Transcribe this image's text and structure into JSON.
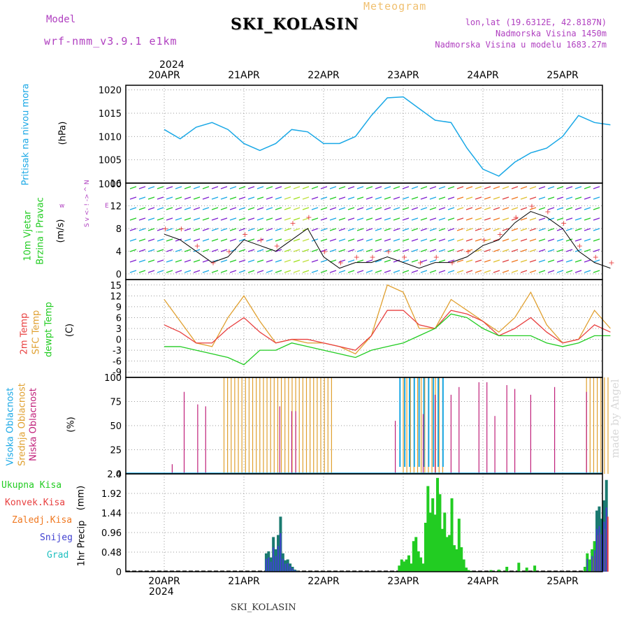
{
  "header": {
    "model_label": "Model",
    "model_value": "wrf-nmm_v3.9.1 e1km",
    "station": "SKI_KOLASIN",
    "meteogram_label": "Meteogram",
    "lonlat": "lon,lat (19.6312E, 42.8187N)",
    "altitude": "Nadmorska Visina 1450m",
    "model_altitude": "Nadmorska Visina u modelu 1683.27m",
    "year": "2024",
    "watermark": "made by Angel",
    "footer_station": "SKI_KOLASIN"
  },
  "colors": {
    "pressure": "#1aa8e6",
    "temp2m": "#e84040",
    "sfc": "#e0a030",
    "dewpt": "#22cc22",
    "high_cloud": "#1aa8e6",
    "mid_cloud": "#e0a030",
    "low_cloud": "#c0207a",
    "rain_total": "#22cc22",
    "rain_conv": "#e84040",
    "freezing": "#f07820",
    "snow": "#4040d0",
    "hail": "#20c0c0",
    "model_label": "#b040c0"
  },
  "chart_data": [
    {
      "id": "pressure",
      "type": "line",
      "ylabel_left": "Pritisak na nivou mora",
      "unit": "(hPa)",
      "yticks": [
        1005,
        1010,
        1015,
        1020
      ],
      "ytick_partial": "1000",
      "ylim": [
        1000,
        1021
      ],
      "x_days": [
        "20APR",
        "21APR",
        "22APR",
        "23APR",
        "24APR",
        "25APR"
      ],
      "x": [
        0,
        0.2,
        0.4,
        0.6,
        0.8,
        1.0,
        1.2,
        1.4,
        1.6,
        1.8,
        2.0,
        2.2,
        2.4,
        2.6,
        2.8,
        3.0,
        3.2,
        3.4,
        3.6,
        3.8,
        4.0,
        4.2,
        4.4,
        4.6,
        4.8,
        5.0,
        5.2,
        5.4,
        5.6
      ],
      "values": [
        1011.5,
        1009.5,
        1012,
        1013,
        1011.5,
        1008.5,
        1007,
        1008.5,
        1011.5,
        1011,
        1008.5,
        1008.5,
        1010,
        1014.5,
        1018.3,
        1018.5,
        1016,
        1013.5,
        1013,
        1007.5,
        1003,
        1001.5,
        1004.5,
        1006.5,
        1007.5,
        1010,
        1014.5,
        1013,
        1012.5
      ]
    },
    {
      "id": "wind",
      "type": "line",
      "ylabel_left": "10m Vjetar",
      "ylabel_left2": "Brzina i Pravac",
      "unit": "(m/s)",
      "direction_legend": [
        "w",
        "<- ! ->",
        "E",
        "N",
        "^",
        "v",
        "S"
      ],
      "yticks": [
        0,
        4,
        8,
        12,
        16
      ],
      "ylim": [
        -1,
        16
      ],
      "x": [
        0,
        0.2,
        0.4,
        0.6,
        0.8,
        1.0,
        1.2,
        1.4,
        1.6,
        1.8,
        2.0,
        2.2,
        2.4,
        2.6,
        2.8,
        3.0,
        3.2,
        3.4,
        3.6,
        3.8,
        4.0,
        4.2,
        4.4,
        4.6,
        4.8,
        5.0,
        5.2,
        5.4,
        5.6
      ],
      "values": [
        7,
        6,
        4,
        2,
        3,
        6,
        5,
        4,
        6,
        8,
        3,
        1,
        2,
        2,
        3,
        2,
        1,
        2,
        2,
        3,
        5,
        6,
        9,
        11,
        10,
        8,
        4,
        2,
        1
      ],
      "gusts": [
        8,
        8,
        5,
        2,
        4,
        7,
        6,
        5,
        9,
        10,
        4,
        2,
        3,
        3,
        4,
        3,
        2,
        3,
        2,
        4,
        6,
        7,
        10,
        12,
        11,
        9,
        5,
        3,
        2
      ]
    },
    {
      "id": "temperature",
      "type": "line",
      "ylabel_left": "2m Temp",
      "ylabel_left2": "SFC Temp",
      "ylabel_left3": "dewpt Temp",
      "unit": "(C)",
      "yticks": [
        -9,
        -6,
        -3,
        0,
        3,
        6,
        9,
        12,
        15
      ],
      "ylim": [
        -10.5,
        16.5
      ],
      "x": [
        0,
        0.2,
        0.4,
        0.6,
        0.8,
        1.0,
        1.2,
        1.4,
        1.6,
        1.8,
        2.0,
        2.2,
        2.4,
        2.6,
        2.8,
        3.0,
        3.2,
        3.4,
        3.6,
        3.8,
        4.0,
        4.2,
        4.4,
        4.6,
        4.8,
        5.0,
        5.2,
        5.4,
        5.6
      ],
      "series": [
        {
          "name": "SFC Temp",
          "values": [
            11,
            5,
            -1,
            -2,
            6,
            12,
            5,
            -1,
            0,
            -1,
            -1,
            -2,
            -4,
            1,
            15,
            13,
            3,
            3,
            11,
            8,
            5,
            2,
            6,
            13,
            4,
            -1,
            0,
            8,
            3
          ]
        },
        {
          "name": "2m Temp",
          "values": [
            4,
            2,
            -1,
            -1,
            3,
            6,
            2,
            -1,
            0,
            0,
            -1,
            -2,
            -3,
            1,
            8,
            8,
            4,
            3,
            8,
            7,
            5,
            1,
            3,
            6,
            2,
            -1,
            0,
            4,
            2
          ]
        },
        {
          "name": "dewpt Temp",
          "values": [
            -2,
            -2,
            -3,
            -4,
            -5,
            -7,
            -3,
            -3,
            -1,
            -2,
            -3,
            -4,
            -5,
            -3,
            -2,
            -1,
            1,
            3,
            7,
            6,
            3,
            1,
            1,
            1,
            -1,
            -2,
            -1,
            1,
            1
          ]
        }
      ]
    },
    {
      "id": "clouds",
      "type": "bar",
      "ylabel_left": "Visoka Oblacnost",
      "ylabel_left2": "Srednja Oblacnost",
      "ylabel_left3": "Niska Oblacnost",
      "unit": "(%)",
      "yticks": [
        0,
        25,
        50,
        75,
        100
      ],
      "ylim": [
        0,
        100
      ],
      "low_x": [
        0.1,
        0.25,
        0.42,
        0.52,
        1.45,
        1.6,
        1.65,
        2.9,
        3.25,
        3.4,
        3.6,
        3.7,
        3.95,
        4.05,
        4.15,
        4.3,
        4.4,
        4.6,
        4.9,
        5.3
      ],
      "low_values": [
        10,
        85,
        72,
        70,
        70,
        65,
        65,
        55,
        62,
        82,
        82,
        90,
        95,
        95,
        60,
        92,
        88,
        82,
        90,
        85
      ],
      "mid_ranges": [
        [
          0.75,
          2.1
        ],
        [
          3.0,
          3.5
        ],
        [
          5.3,
          5.6
        ]
      ],
      "mid_value": 100,
      "high_ranges": [
        [
          2.95,
          3.55
        ]
      ],
      "high_value": 100
    },
    {
      "id": "precip",
      "type": "bar",
      "ylabel_left": "1hr Precip",
      "unit": "(mm)",
      "legend": [
        "Ukupna Kisa",
        "Konvek.Kisa",
        "Zaledj.Kisa",
        "Snijeg",
        "Grad"
      ],
      "yticks": [
        0,
        0.48,
        0.96,
        1.44,
        1.92,
        2.4
      ],
      "ytick_labels": [
        "0",
        "0.48",
        "0.96",
        "1.44",
        "1.92",
        "2.4"
      ],
      "ylim": [
        0,
        2.4
      ],
      "x_days": [
        "20APR",
        "21APR",
        "22APR",
        "23APR",
        "24APR",
        "25APR"
      ],
      "x": [
        1.28,
        1.31,
        1.34,
        1.37,
        1.4,
        1.43,
        1.46,
        1.49,
        1.52,
        1.55,
        1.58,
        1.61,
        1.64,
        1.67,
        2.95,
        2.98,
        3.01,
        3.04,
        3.07,
        3.1,
        3.13,
        3.16,
        3.19,
        3.22,
        3.25,
        3.28,
        3.31,
        3.34,
        3.37,
        3.4,
        3.43,
        3.46,
        3.49,
        3.52,
        3.55,
        3.58,
        3.61,
        3.64,
        3.67,
        3.7,
        3.73,
        3.76,
        3.79,
        3.82,
        3.85,
        4.1,
        4.2,
        4.3,
        4.45,
        4.55,
        4.65,
        5.28,
        5.31,
        5.34,
        5.37,
        5.4,
        5.43,
        5.46,
        5.49,
        5.52,
        5.55
      ],
      "values": [
        0.45,
        0.5,
        0.35,
        0.85,
        0.55,
        0.9,
        1.35,
        0.45,
        0.28,
        0.3,
        0.2,
        0.12,
        0.05,
        0.02,
        0.15,
        0.3,
        0.25,
        0.3,
        0.4,
        0.2,
        0.75,
        0.85,
        0.5,
        0.35,
        0.2,
        1.2,
        2.1,
        1.45,
        1.8,
        1.4,
        2.3,
        1.9,
        1.05,
        1.45,
        0.85,
        0.9,
        1.8,
        0.65,
        0.55,
        1.3,
        0.6,
        0.3,
        0.1,
        0.04,
        0.02,
        0.04,
        0.05,
        0.12,
        0.22,
        0.1,
        0.15,
        0.12,
        0.45,
        0.3,
        0.55,
        0.75,
        1.5,
        1.6,
        1.3,
        1.75,
        2.25
      ]
    }
  ]
}
